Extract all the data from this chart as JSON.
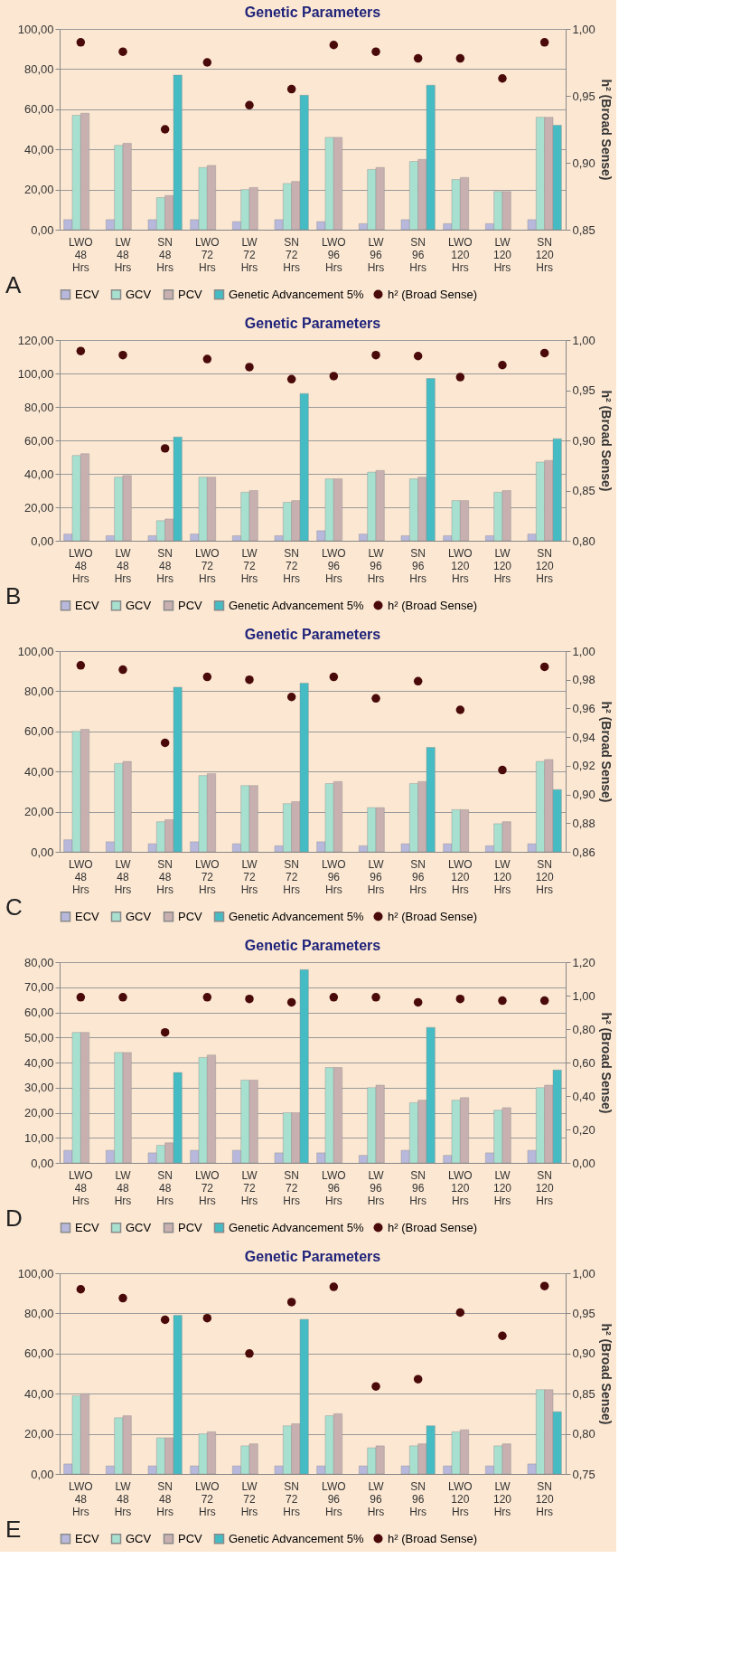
{
  "chart_data": [
    {
      "type": "bar",
      "title": "Genetic Parameters",
      "y2label": "h² (Broad Sense)",
      "annotations": [
        "A"
      ],
      "legend": "bottom",
      "grid": "y",
      "marker": "circle",
      "categories": [
        "LWO 48 Hrs",
        "LW 48 Hrs",
        "SN 48 Hrs",
        "LWO 72 Hrs",
        "LW 72 Hrs",
        "SN 72 Hrs",
        "LWO 96 Hrs",
        "LW 96 Hrs",
        "SN 96 Hrs",
        "LWO 120 Hrs",
        "LW 120 Hrs",
        "SN 120 Hrs"
      ],
      "ylim": [
        0,
        100
      ],
      "yticks": [
        {
          "value": 0,
          "label": "0,00"
        },
        {
          "value": 20,
          "label": "20,00"
        },
        {
          "value": 40,
          "label": "40,00"
        },
        {
          "value": 60,
          "label": "60,00"
        },
        {
          "value": 80,
          "label": "80,00"
        },
        {
          "value": 100,
          "label": "100,00"
        }
      ],
      "y2lim": [
        0.85,
        1.0
      ],
      "y2ticks": [
        {
          "value": 0.85,
          "label": "0,85"
        },
        {
          "value": 0.9,
          "label": "0,90"
        },
        {
          "value": 0.95,
          "label": "0,95"
        },
        {
          "value": 1.0,
          "label": "1,00"
        }
      ],
      "series": [
        {
          "name": "ECV",
          "color": "#b8b8dc",
          "values": [
            5,
            5,
            5,
            5,
            4,
            5,
            4,
            3,
            5,
            3,
            3,
            5
          ]
        },
        {
          "name": "GCV",
          "color": "#a8e0d0",
          "values": [
            57,
            42,
            16,
            31,
            20,
            23,
            46,
            30,
            34,
            25,
            19,
            56
          ]
        },
        {
          "name": "PCV",
          "color": "#c8b0b0",
          "values": [
            58,
            43,
            17,
            32,
            21,
            24,
            46,
            31,
            35,
            26,
            19,
            56
          ]
        },
        {
          "name": "Genetic Advancement 5%",
          "color": "#45bcc4",
          "values": [
            null,
            null,
            77,
            null,
            null,
            67,
            null,
            null,
            72,
            null,
            null,
            52
          ]
        },
        {
          "name": "h² (Broad Sense)",
          "color": "#4a0a0a",
          "type": "scatter",
          "axis": "y2",
          "values": [
            0.99,
            0.983,
            0.925,
            0.975,
            0.943,
            0.955,
            0.988,
            0.983,
            0.978,
            0.978,
            0.963,
            0.99
          ]
        }
      ]
    },
    {
      "type": "bar",
      "title": "Genetic Parameters",
      "y2label": "h² (Broad Sense)",
      "annotations": [
        "B"
      ],
      "legend": "bottom",
      "grid": "y",
      "marker": "circle",
      "categories": [
        "LWO 48 Hrs",
        "LW 48 Hrs",
        "SN 48 Hrs",
        "LWO 72 Hrs",
        "LW 72 Hrs",
        "SN 72 Hrs",
        "LWO 96 Hrs",
        "LW 96 Hrs",
        "SN 96 Hrs",
        "LWO 120 Hrs",
        "LW 120 Hrs",
        "SN 120 Hrs"
      ],
      "ylim": [
        0,
        120
      ],
      "yticks": [
        {
          "value": 0,
          "label": "0,00"
        },
        {
          "value": 20,
          "label": "20,00"
        },
        {
          "value": 40,
          "label": "40,00"
        },
        {
          "value": 60,
          "label": "60,00"
        },
        {
          "value": 80,
          "label": "80,00"
        },
        {
          "value": 100,
          "label": "100,00"
        },
        {
          "value": 120,
          "label": "120,00"
        }
      ],
      "y2lim": [
        0.8,
        1.0
      ],
      "y2ticks": [
        {
          "value": 0.8,
          "label": "0,80"
        },
        {
          "value": 0.85,
          "label": "0,85"
        },
        {
          "value": 0.9,
          "label": "0,90"
        },
        {
          "value": 0.95,
          "label": "0,95"
        },
        {
          "value": 1.0,
          "label": "1,00"
        }
      ],
      "series": [
        {
          "name": "ECV",
          "color": "#b8b8dc",
          "values": [
            4,
            3,
            3,
            4,
            3,
            3,
            6,
            4,
            3,
            3,
            3,
            4
          ]
        },
        {
          "name": "GCV",
          "color": "#a8e0d0",
          "values": [
            51,
            38,
            12,
            38,
            29,
            23,
            37,
            41,
            37,
            24,
            29,
            47
          ]
        },
        {
          "name": "PCV",
          "color": "#c8b0b0",
          "values": [
            52,
            39,
            13,
            38,
            30,
            24,
            37,
            42,
            38,
            24,
            30,
            48
          ]
        },
        {
          "name": "Genetic Advancement 5%",
          "color": "#45bcc4",
          "values": [
            null,
            null,
            62,
            null,
            null,
            88,
            null,
            null,
            97,
            null,
            null,
            61
          ]
        },
        {
          "name": "h² (Broad Sense)",
          "color": "#4a0a0a",
          "type": "scatter",
          "axis": "y2",
          "values": [
            0.989,
            0.985,
            0.892,
            0.981,
            0.973,
            0.961,
            0.964,
            0.985,
            0.984,
            0.963,
            0.975,
            0.987
          ]
        }
      ]
    },
    {
      "type": "bar",
      "title": "Genetic Parameters",
      "y2label": "h² (Broad Sense)",
      "annotations": [
        "C"
      ],
      "legend": "bottom",
      "grid": "y",
      "marker": "circle",
      "categories": [
        "LWO 48 Hrs",
        "LW 48 Hrs",
        "SN 48 Hrs",
        "LWO 72 Hrs",
        "LW 72 Hrs",
        "SN 72 Hrs",
        "LWO 96 Hrs",
        "LW 96 Hrs",
        "SN 96 Hrs",
        "LWO 120 Hrs",
        "LW 120 Hrs",
        "SN 120 Hrs"
      ],
      "ylim": [
        0,
        100
      ],
      "yticks": [
        {
          "value": 0,
          "label": "0,00"
        },
        {
          "value": 20,
          "label": "20,00"
        },
        {
          "value": 40,
          "label": "40,00"
        },
        {
          "value": 60,
          "label": "60,00"
        },
        {
          "value": 80,
          "label": "80,00"
        },
        {
          "value": 100,
          "label": "100,00"
        }
      ],
      "y2lim": [
        0.86,
        1.0
      ],
      "y2ticks": [
        {
          "value": 0.86,
          "label": "0,86"
        },
        {
          "value": 0.88,
          "label": "0,88"
        },
        {
          "value": 0.9,
          "label": "0,90"
        },
        {
          "value": 0.92,
          "label": "0,92"
        },
        {
          "value": 0.94,
          "label": "0,94"
        },
        {
          "value": 0.96,
          "label": "0,96"
        },
        {
          "value": 0.98,
          "label": "0,98"
        },
        {
          "value": 1.0,
          "label": "1,00"
        }
      ],
      "series": [
        {
          "name": "ECV",
          "color": "#b8b8dc",
          "values": [
            6,
            5,
            4,
            5,
            4,
            3,
            5,
            3,
            4,
            4,
            3,
            4
          ]
        },
        {
          "name": "GCV",
          "color": "#a8e0d0",
          "values": [
            60,
            44,
            15,
            38,
            33,
            24,
            34,
            22,
            34,
            21,
            14,
            45
          ]
        },
        {
          "name": "PCV",
          "color": "#c8b0b0",
          "values": [
            61,
            45,
            16,
            39,
            33,
            25,
            35,
            22,
            35,
            21,
            15,
            46
          ]
        },
        {
          "name": "Genetic Advancement 5%",
          "color": "#45bcc4",
          "values": [
            null,
            null,
            82,
            null,
            null,
            84,
            null,
            null,
            52,
            null,
            null,
            31
          ]
        },
        {
          "name": "h² (Broad Sense)",
          "color": "#4a0a0a",
          "type": "scatter",
          "axis": "y2",
          "values": [
            0.99,
            0.987,
            0.936,
            0.982,
            0.98,
            0.968,
            0.982,
            0.967,
            0.979,
            0.959,
            0.917,
            0.989
          ]
        }
      ]
    },
    {
      "type": "bar",
      "title": "Genetic Parameters",
      "y2label": "h² (Broad Sense)",
      "annotations": [
        "D"
      ],
      "legend": "bottom",
      "grid": "y",
      "marker": "circle",
      "categories": [
        "LWO 48 Hrs",
        "LW 48 Hrs",
        "SN 48 Hrs",
        "LWO 72 Hrs",
        "LW 72 Hrs",
        "SN 72 Hrs",
        "LWO 96 Hrs",
        "LW 96 Hrs",
        "SN 96 Hrs",
        "LWO 120 Hrs",
        "LW 120 Hrs",
        "SN 120 Hrs"
      ],
      "ylim": [
        0,
        80
      ],
      "yticks": [
        {
          "value": 0,
          "label": "0,00"
        },
        {
          "value": 10,
          "label": "10,00"
        },
        {
          "value": 20,
          "label": "20,00"
        },
        {
          "value": 30,
          "label": "30,00"
        },
        {
          "value": 40,
          "label": "40,00"
        },
        {
          "value": 50,
          "label": "50,00"
        },
        {
          "value": 60,
          "label": "60,00"
        },
        {
          "value": 70,
          "label": "70,00"
        },
        {
          "value": 80,
          "label": "80,00"
        }
      ],
      "y2lim": [
        0,
        1.2
      ],
      "y2ticks": [
        {
          "value": 0,
          "label": "0,00"
        },
        {
          "value": 0.2,
          "label": "0,20"
        },
        {
          "value": 0.4,
          "label": "0,40"
        },
        {
          "value": 0.6,
          "label": "0,60"
        },
        {
          "value": 0.8,
          "label": "0,80"
        },
        {
          "value": 1.0,
          "label": "1,00"
        },
        {
          "value": 1.2,
          "label": "1,20"
        }
      ],
      "series": [
        {
          "name": "ECV",
          "color": "#b8b8dc",
          "values": [
            5,
            5,
            4,
            5,
            5,
            4,
            4,
            3,
            5,
            3,
            4,
            5
          ]
        },
        {
          "name": "GCV",
          "color": "#a8e0d0",
          "values": [
            52,
            44,
            7,
            42,
            33,
            20,
            38,
            30,
            24,
            25,
            21,
            30
          ]
        },
        {
          "name": "PCV",
          "color": "#c8b0b0",
          "values": [
            52,
            44,
            8,
            43,
            33,
            20,
            38,
            31,
            25,
            26,
            22,
            31
          ]
        },
        {
          "name": "Genetic Advancement 5%",
          "color": "#45bcc4",
          "values": [
            null,
            null,
            36,
            null,
            null,
            77,
            null,
            null,
            54,
            null,
            null,
            37
          ]
        },
        {
          "name": "h² (Broad Sense)",
          "color": "#4a0a0a",
          "type": "scatter",
          "axis": "y2",
          "values": [
            0.99,
            0.99,
            0.78,
            0.99,
            0.98,
            0.96,
            0.99,
            0.99,
            0.96,
            0.98,
            0.97,
            0.97
          ]
        }
      ]
    },
    {
      "type": "bar",
      "title": "Genetic Parameters",
      "y2label": "h² (Broad Sense)",
      "annotations": [
        "E"
      ],
      "legend": "bottom",
      "grid": "y",
      "marker": "circle",
      "categories": [
        "LWO 48 Hrs",
        "LW 48 Hrs",
        "SN 48 Hrs",
        "LWO 72 Hrs",
        "LW 72 Hrs",
        "SN 72 Hrs",
        "LWO 96 Hrs",
        "LW 96 Hrs",
        "SN 96 Hrs",
        "LWO 120 Hrs",
        "LW 120 Hrs",
        "SN 120 Hrs"
      ],
      "ylim": [
        0,
        100
      ],
      "yticks": [
        {
          "value": 0,
          "label": "0,00"
        },
        {
          "value": 20,
          "label": "20,00"
        },
        {
          "value": 40,
          "label": "40,00"
        },
        {
          "value": 60,
          "label": "60,00"
        },
        {
          "value": 80,
          "label": "80,00"
        },
        {
          "value": 100,
          "label": "100,00"
        }
      ],
      "y2lim": [
        0.75,
        1.0
      ],
      "y2ticks": [
        {
          "value": 0.75,
          "label": "0,75"
        },
        {
          "value": 0.8,
          "label": "0,80"
        },
        {
          "value": 0.85,
          "label": "0,85"
        },
        {
          "value": 0.9,
          "label": "0,90"
        },
        {
          "value": 0.95,
          "label": "0,95"
        },
        {
          "value": 1.0,
          "label": "1,00"
        }
      ],
      "series": [
        {
          "name": "ECV",
          "color": "#b8b8dc",
          "values": [
            5,
            4,
            4,
            4,
            4,
            4,
            4,
            4,
            4,
            4,
            4,
            5
          ]
        },
        {
          "name": "GCV",
          "color": "#a8e0d0",
          "values": [
            39,
            28,
            18,
            20,
            14,
            24,
            29,
            13,
            14,
            21,
            14,
            42
          ]
        },
        {
          "name": "PCV",
          "color": "#c8b0b0",
          "values": [
            40,
            29,
            18,
            21,
            15,
            25,
            30,
            14,
            15,
            22,
            15,
            42
          ]
        },
        {
          "name": "Genetic Advancement 5%",
          "color": "#45bcc4",
          "values": [
            null,
            null,
            79,
            null,
            null,
            77,
            null,
            null,
            24,
            null,
            null,
            31
          ]
        },
        {
          "name": "h² (Broad Sense)",
          "color": "#4a0a0a",
          "type": "scatter",
          "axis": "y2",
          "values": [
            0.98,
            0.969,
            0.942,
            0.944,
            0.9,
            0.964,
            0.983,
            0.859,
            0.868,
            0.951,
            0.922,
            0.984
          ]
        }
      ]
    }
  ]
}
